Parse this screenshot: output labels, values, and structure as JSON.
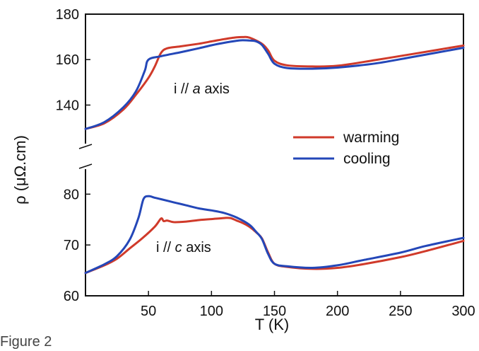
{
  "chart_data": {
    "type": "line",
    "xlabel": "T (K)",
    "ylabel": "ρ (μΩ.cm)",
    "xlim": [
      0,
      300
    ],
    "x_ticks": [
      50,
      100,
      150,
      200,
      250,
      300
    ],
    "y_ticks_upper": [
      140,
      160,
      180
    ],
    "y_ticks_lower": [
      60,
      70,
      80
    ],
    "ylim_upper": [
      128,
      180
    ],
    "ylim_lower": [
      60,
      82
    ],
    "axis_break": true,
    "legend": {
      "position": "right",
      "entries": [
        "warming",
        "cooling"
      ]
    },
    "colors": {
      "warming": "#d03a2a",
      "cooling": "#2447b8"
    },
    "panels": [
      {
        "label": {
          "prefix": "i // ",
          "axis_letter": "a",
          "suffix": " axis"
        },
        "series": [
          {
            "name": "warming",
            "x": [
              0,
              15,
              30,
              40,
              50,
              55,
              60,
              65,
              75,
              90,
              100,
              110,
              120,
              125,
              130,
              140,
              145,
              150,
              160,
              180,
              200,
              230,
              260,
              300
            ],
            "y": [
              129.5,
              132,
              138,
              144.5,
              152,
              157,
              163,
              165,
              165.8,
              167,
              168,
              169,
              169.8,
              169.9,
              169.7,
              167,
              164,
              159.5,
              157.5,
              157,
              157.3,
              159.8,
              162.5,
              166.2
            ]
          },
          {
            "name": "cooling",
            "x": [
              0,
              15,
              30,
              40,
              47,
              50,
              60,
              75,
              90,
              100,
              110,
              120,
              125,
              130,
              135,
              140,
              145,
              150,
              160,
              180,
              200,
              230,
              260,
              300
            ],
            "y": [
              129.5,
              132.5,
              139,
              146,
              155,
              160,
              161.5,
              163.2,
              165,
              166.3,
              167.4,
              168.3,
              168.5,
              168.4,
              168.1,
              166.5,
              162.5,
              158.2,
              156.3,
              156,
              156.5,
              158.3,
              161.2,
              165.2
            ]
          }
        ]
      },
      {
        "label": {
          "prefix": "i // ",
          "axis_letter": "c",
          "suffix": " axis"
        },
        "series": [
          {
            "name": "warming",
            "x": [
              0,
              15,
              25,
              35,
              45,
              55,
              60,
              62,
              65,
              70,
              80,
              90,
              100,
              110,
              115,
              120,
              125,
              130,
              135,
              140,
              145,
              150,
              160,
              180,
              200,
              220,
              250,
              270,
              300
            ],
            "y": [
              64.5,
              66,
              67.3,
              69.3,
              71.3,
              73.6,
              75.2,
              74.7,
              74.8,
              74.5,
              74.6,
              74.9,
              75.1,
              75.3,
              75.3,
              74.8,
              74.3,
              73.6,
              72.6,
              71.3,
              68.5,
              66.3,
              65.7,
              65.3,
              65.5,
              66.2,
              67.6,
              68.8,
              70.8
            ]
          },
          {
            "name": "cooling",
            "x": [
              0,
              15,
              25,
              35,
              42,
              46,
              50,
              55,
              60,
              70,
              80,
              90,
              100,
              110,
              120,
              130,
              135,
              140,
              145,
              150,
              160,
              180,
              200,
              220,
              250,
              270,
              300
            ],
            "y": [
              64.5,
              66.2,
              67.8,
              71,
              75.3,
              79,
              79.6,
              79.3,
              79,
              78.4,
              77.8,
              77.2,
              76.8,
              76.3,
              75.4,
              74,
              72.7,
              71.2,
              68.2,
              66.3,
              65.8,
              65.5,
              66,
              67,
              68.5,
              69.8,
              71.4
            ]
          }
        ]
      }
    ]
  },
  "caption": "Figure 2"
}
